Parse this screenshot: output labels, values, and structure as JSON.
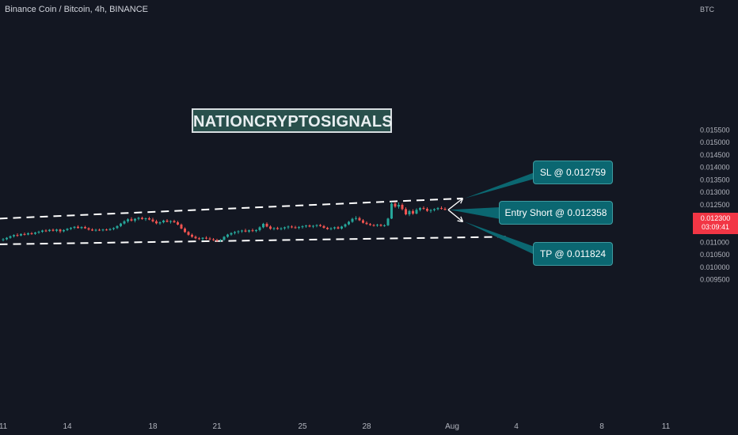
{
  "header": {
    "symbol_title": "Binance Coin / Bitcoin, 4h, BINANCE"
  },
  "axis": {
    "currency": "BTC"
  },
  "watermark": {
    "text": "NATIONCRYPTOSIGNALS"
  },
  "callouts": {
    "sl": "SL @ 0.012759",
    "entry": "Entry Short @ 0.012358",
    "tp": "TP @ 0.011824"
  },
  "price_tag": {
    "price": "0.012300",
    "countdown": "03:09:41"
  },
  "colors": {
    "background": "#131722",
    "up": "#26a69a",
    "down": "#ef5350",
    "callout": "#0b6771",
    "price_tag": "#f23645",
    "channel_line": "#ffffff"
  },
  "chart_data": {
    "type": "candlestick",
    "title": "Binance Coin / Bitcoin, 4h, BINANCE",
    "y_axis": {
      "unit": "BTC",
      "range": [
        0.0092,
        0.0156
      ],
      "ticks": [
        "0.015500",
        "0.015000",
        "0.014500",
        "0.014000",
        "0.013500",
        "0.013000",
        "0.012500",
        "0.012000",
        "0.011500",
        "0.011000",
        "0.010500",
        "0.010000",
        "0.009500"
      ]
    },
    "x_axis": {
      "ticks": [
        {
          "label": "11",
          "bar": 0
        },
        {
          "label": "14",
          "bar": 18
        },
        {
          "label": "18",
          "bar": 42
        },
        {
          "label": "21",
          "bar": 60
        },
        {
          "label": "25",
          "bar": 84
        },
        {
          "label": "28",
          "bar": 102
        },
        {
          "label": "Aug",
          "bar": 126
        },
        {
          "label": "4",
          "bar": 144
        },
        {
          "label": "8",
          "bar": 168
        },
        {
          "label": "11",
          "bar": 186
        }
      ]
    },
    "candles": [
      [
        0.0111,
        0.01117,
        0.01104,
        0.01112
      ],
      [
        0.01112,
        0.01121,
        0.01108,
        0.01118
      ],
      [
        0.01118,
        0.01127,
        0.01114,
        0.01124
      ],
      [
        0.01124,
        0.01132,
        0.01119,
        0.01129
      ],
      [
        0.01129,
        0.01136,
        0.01122,
        0.01127
      ],
      [
        0.01127,
        0.01136,
        0.01124,
        0.01133
      ],
      [
        0.01133,
        0.01139,
        0.01127,
        0.01131
      ],
      [
        0.01131,
        0.0114,
        0.01128,
        0.01136
      ],
      [
        0.01136,
        0.01141,
        0.0113,
        0.01134
      ],
      [
        0.01134,
        0.01142,
        0.0113,
        0.01139
      ],
      [
        0.01139,
        0.01146,
        0.01134,
        0.01142
      ],
      [
        0.01142,
        0.0115,
        0.01138,
        0.01147
      ],
      [
        0.01147,
        0.01152,
        0.01141,
        0.01145
      ],
      [
        0.01145,
        0.01153,
        0.01142,
        0.0115
      ],
      [
        0.0115,
        0.01155,
        0.01143,
        0.01146
      ],
      [
        0.01146,
        0.01154,
        0.01141,
        0.01151
      ],
      [
        0.01151,
        0.01154,
        0.01137,
        0.01144
      ],
      [
        0.01144,
        0.01152,
        0.0114,
        0.01149
      ],
      [
        0.01149,
        0.01157,
        0.01145,
        0.01154
      ],
      [
        0.01154,
        0.01161,
        0.01149,
        0.01158
      ],
      [
        0.01158,
        0.01165,
        0.01153,
        0.01162
      ],
      [
        0.01162,
        0.01168,
        0.01155,
        0.01157
      ],
      [
        0.01157,
        0.01164,
        0.01153,
        0.01161
      ],
      [
        0.01161,
        0.01166,
        0.01154,
        0.01156
      ],
      [
        0.01156,
        0.0116,
        0.01147,
        0.01151
      ],
      [
        0.01151,
        0.01156,
        0.01145,
        0.01147
      ],
      [
        0.01147,
        0.01154,
        0.01143,
        0.0115
      ],
      [
        0.0115,
        0.01155,
        0.01145,
        0.01148
      ],
      [
        0.01148,
        0.01154,
        0.01144,
        0.01151
      ],
      [
        0.01151,
        0.01155,
        0.01146,
        0.01149
      ],
      [
        0.01149,
        0.01157,
        0.01146,
        0.01153
      ],
      [
        0.01153,
        0.0116,
        0.01148,
        0.01157
      ],
      [
        0.01157,
        0.01168,
        0.01153,
        0.01165
      ],
      [
        0.01165,
        0.01178,
        0.01161,
        0.01175
      ],
      [
        0.01175,
        0.01188,
        0.01171,
        0.01184
      ],
      [
        0.01184,
        0.01196,
        0.01178,
        0.01192
      ],
      [
        0.01192,
        0.012,
        0.01183,
        0.01187
      ],
      [
        0.01187,
        0.01197,
        0.0118,
        0.01194
      ],
      [
        0.01194,
        0.01202,
        0.01188,
        0.01198
      ],
      [
        0.01198,
        0.01203,
        0.0119,
        0.01193
      ],
      [
        0.01193,
        0.01199,
        0.01186,
        0.01196
      ],
      [
        0.01196,
        0.01202,
        0.01188,
        0.01191
      ],
      [
        0.01191,
        0.01198,
        0.0118,
        0.01184
      ],
      [
        0.01184,
        0.0119,
        0.01172,
        0.01176
      ],
      [
        0.01176,
        0.01184,
        0.0117,
        0.0118
      ],
      [
        0.0118,
        0.0119,
        0.01176,
        0.01187
      ],
      [
        0.01187,
        0.01193,
        0.0118,
        0.01182
      ],
      [
        0.01182,
        0.01188,
        0.01175,
        0.01185
      ],
      [
        0.01185,
        0.0119,
        0.01178,
        0.0118
      ],
      [
        0.0118,
        0.01186,
        0.01168,
        0.01171
      ],
      [
        0.01171,
        0.01175,
        0.01152,
        0.01155
      ],
      [
        0.01155,
        0.0116,
        0.01138,
        0.01141
      ],
      [
        0.01141,
        0.01145,
        0.01126,
        0.0113
      ],
      [
        0.0113,
        0.01135,
        0.01118,
        0.01122
      ],
      [
        0.01122,
        0.01127,
        0.01112,
        0.01116
      ],
      [
        0.01116,
        0.01121,
        0.01109,
        0.01114
      ],
      [
        0.01114,
        0.0112,
        0.01107,
        0.01118
      ],
      [
        0.01118,
        0.01124,
        0.01111,
        0.01115
      ],
      [
        0.01115,
        0.01121,
        0.01108,
        0.01112
      ],
      [
        0.01112,
        0.01117,
        0.01105,
        0.01109
      ],
      [
        0.01109,
        0.01114,
        0.01102,
        0.01107
      ],
      [
        0.01107,
        0.01113,
        0.01102,
        0.0111
      ],
      [
        0.0111,
        0.01125,
        0.01106,
        0.01122
      ],
      [
        0.01122,
        0.01134,
        0.01118,
        0.01131
      ],
      [
        0.01131,
        0.0114,
        0.01126,
        0.01137
      ],
      [
        0.01137,
        0.01145,
        0.01131,
        0.01141
      ],
      [
        0.01141,
        0.01148,
        0.01134,
        0.01144
      ],
      [
        0.01144,
        0.0115,
        0.01138,
        0.01147
      ],
      [
        0.01147,
        0.01154,
        0.0114,
        0.01143
      ],
      [
        0.01143,
        0.01151,
        0.01138,
        0.01148
      ],
      [
        0.01148,
        0.01155,
        0.01141,
        0.01145
      ],
      [
        0.01145,
        0.01152,
        0.0114,
        0.01149
      ],
      [
        0.01149,
        0.01164,
        0.01144,
        0.0116
      ],
      [
        0.0116,
        0.01178,
        0.01156,
        0.01174
      ],
      [
        0.01174,
        0.0118,
        0.0116,
        0.01163
      ],
      [
        0.01163,
        0.01168,
        0.0115,
        0.01154
      ],
      [
        0.01154,
        0.0116,
        0.01148,
        0.01157
      ],
      [
        0.01157,
        0.01162,
        0.0115,
        0.01153
      ],
      [
        0.01153,
        0.0116,
        0.01148,
        0.01156
      ],
      [
        0.01156,
        0.01163,
        0.0115,
        0.0116
      ],
      [
        0.0116,
        0.01167,
        0.01153,
        0.01163
      ],
      [
        0.01163,
        0.01168,
        0.01156,
        0.0116
      ],
      [
        0.0116,
        0.01166,
        0.01154,
        0.01158
      ],
      [
        0.01158,
        0.01165,
        0.01152,
        0.01161
      ],
      [
        0.01161,
        0.01168,
        0.01155,
        0.01164
      ],
      [
        0.01164,
        0.0117,
        0.01158,
        0.01167
      ],
      [
        0.01167,
        0.01171,
        0.0116,
        0.01163
      ],
      [
        0.01163,
        0.01169,
        0.01157,
        0.01166
      ],
      [
        0.01166,
        0.01172,
        0.0116,
        0.01169
      ],
      [
        0.01169,
        0.01173,
        0.01162,
        0.01165
      ],
      [
        0.01165,
        0.01169,
        0.01155,
        0.01158
      ],
      [
        0.01158,
        0.01162,
        0.0115,
        0.01153
      ],
      [
        0.01153,
        0.0116,
        0.01148,
        0.01156
      ],
      [
        0.01156,
        0.01163,
        0.01151,
        0.0116
      ],
      [
        0.0116,
        0.01165,
        0.01152,
        0.01155
      ],
      [
        0.01155,
        0.01166,
        0.01151,
        0.01163
      ],
      [
        0.01163,
        0.01175,
        0.01159,
        0.01172
      ],
      [
        0.01172,
        0.01186,
        0.01168,
        0.01182
      ],
      [
        0.01182,
        0.01198,
        0.01178,
        0.01194
      ],
      [
        0.01194,
        0.01205,
        0.01188,
        0.01197
      ],
      [
        0.01197,
        0.01203,
        0.01185,
        0.01188
      ],
      [
        0.01188,
        0.01193,
        0.01175,
        0.01178
      ],
      [
        0.01178,
        0.01184,
        0.0117,
        0.01173
      ],
      [
        0.01173,
        0.01177,
        0.01166,
        0.01169
      ],
      [
        0.01169,
        0.01173,
        0.01163,
        0.01167
      ],
      [
        0.01167,
        0.01174,
        0.01162,
        0.0117
      ],
      [
        0.0117,
        0.01174,
        0.01163,
        0.01166
      ],
      [
        0.01166,
        0.01172,
        0.01162,
        0.01168
      ],
      [
        0.01168,
        0.01198,
        0.01165,
        0.01195
      ],
      [
        0.01195,
        0.01262,
        0.01193,
        0.01255
      ],
      [
        0.01255,
        0.01262,
        0.01238,
        0.01243
      ],
      [
        0.01243,
        0.0126,
        0.01235,
        0.0125
      ],
      [
        0.0125,
        0.01256,
        0.01228,
        0.01233
      ],
      [
        0.01233,
        0.0124,
        0.01208,
        0.01212
      ],
      [
        0.01212,
        0.0123,
        0.01205,
        0.01225
      ],
      [
        0.01225,
        0.01232,
        0.0121,
        0.01215
      ],
      [
        0.01215,
        0.01236,
        0.01212,
        0.0123
      ],
      [
        0.0123,
        0.01241,
        0.01224,
        0.01237
      ],
      [
        0.01237,
        0.01244,
        0.0123,
        0.01234
      ],
      [
        0.01234,
        0.0124,
        0.01222,
        0.01226
      ],
      [
        0.01226,
        0.01233,
        0.01218,
        0.01229
      ],
      [
        0.01229,
        0.01236,
        0.01224,
        0.01233
      ],
      [
        0.01233,
        0.01241,
        0.01228,
        0.01237
      ],
      [
        0.01237,
        0.01244,
        0.01231,
        0.01234
      ],
      [
        0.01234,
        0.0124,
        0.01228,
        0.0123
      ]
    ],
    "trend_lines": [
      {
        "name": "channel-upper",
        "from": {
          "bar": -1,
          "price": 0.01195
        },
        "to": {
          "bar": 129,
          "price": 0.012759
        }
      },
      {
        "name": "channel-lower",
        "from": {
          "bar": -1,
          "price": 0.01092
        },
        "to": {
          "bar": 141,
          "price": 0.01122
        }
      }
    ],
    "levels": {
      "stop_loss": 0.012759,
      "entry_short": 0.012358,
      "take_profit": 0.011824,
      "last_price": 0.0123
    }
  }
}
